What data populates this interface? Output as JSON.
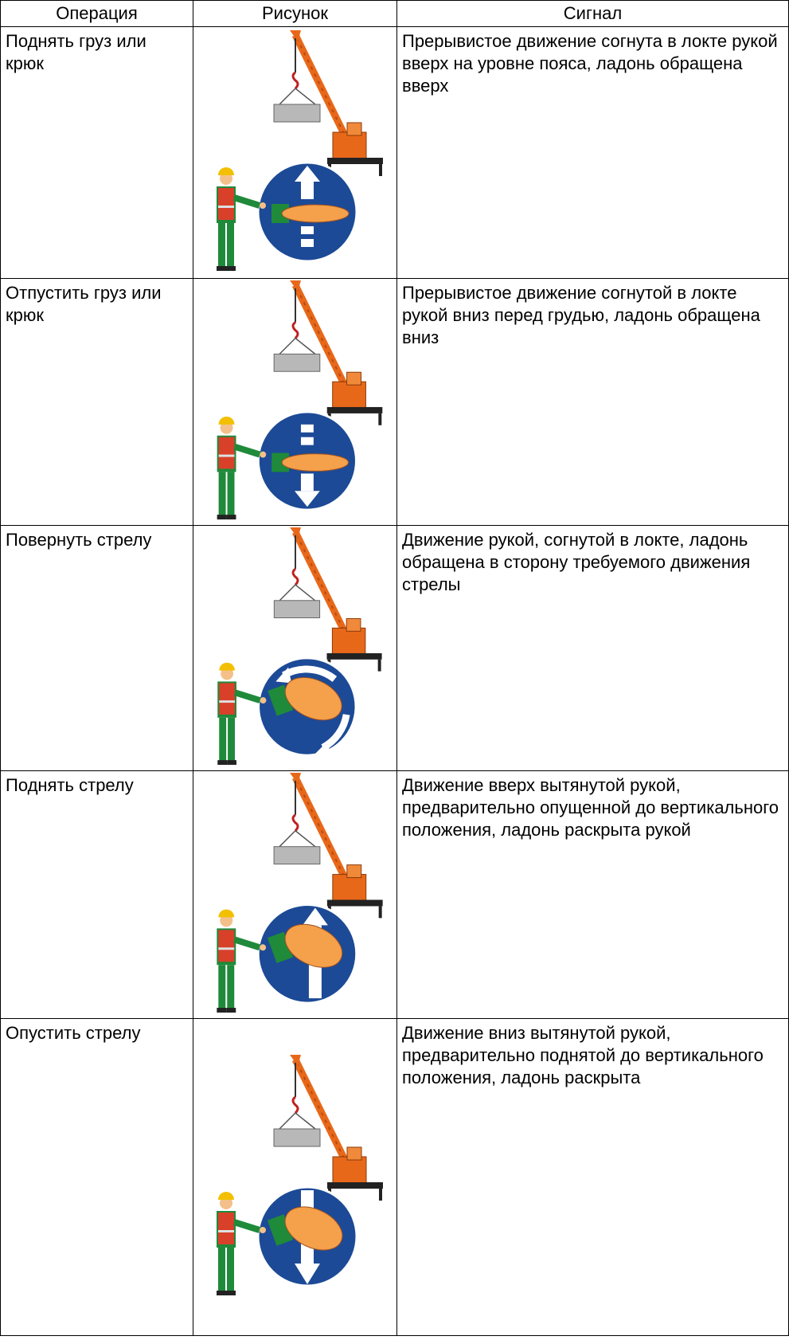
{
  "table": {
    "header": [
      "Операция",
      "Рисунок",
      "Сигнал"
    ],
    "rows": [
      {
        "operation": "Поднять груз или крюк",
        "signal": "Прерывистое движение согнута в локте рукой вверх на уровне пояса, ладонь обращена вверх"
      },
      {
        "operation": "Отпустить груз или крюк",
        "signal": "Прерывистое движение согнутой в локте рукой вниз перед грудью, ладонь обращена вниз"
      },
      {
        "operation": "Повернуть стрелу",
        "signal": "Движение рукой, согнутой в локте, ладонь обращена в сторону требуемого движения стрелы"
      },
      {
        "operation": "Поднять стрелу",
        "signal": "Движение вверх вытянутой рукой, предварительно опущенной до вертикального положения, ладонь раскрыта рукой"
      },
      {
        "operation": "Опустить стрелу",
        "signal": "Движение вниз вытянутой рукой, предварительно поднятой до вертикального положения, ладонь раскрыта"
      }
    ]
  }
}
